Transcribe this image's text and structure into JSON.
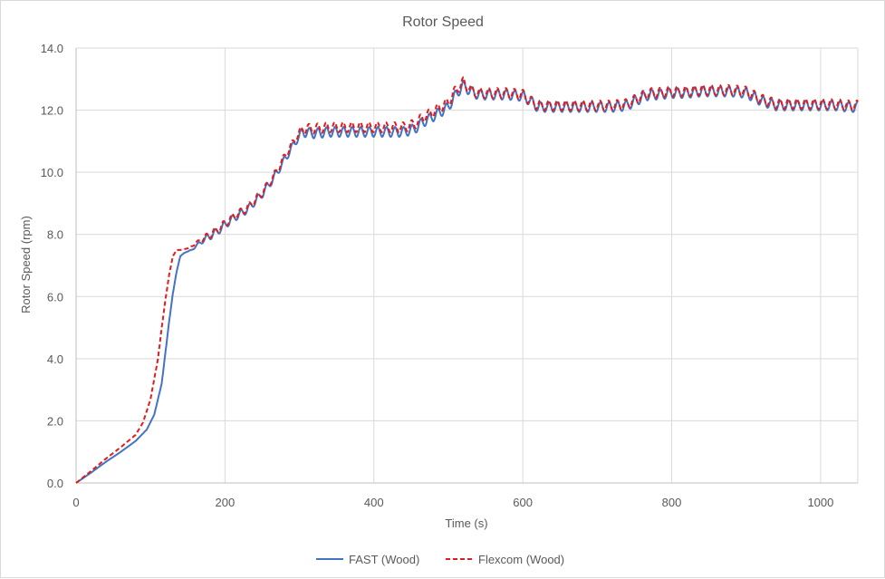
{
  "chart_data": {
    "type": "line",
    "title": "Rotor Speed",
    "xlabel": "Time (s)",
    "ylabel": "Rotor Speed (rpm)",
    "xlim": [
      0,
      1050
    ],
    "ylim": [
      0,
      14
    ],
    "xticks": [
      0,
      200,
      400,
      600,
      800,
      1000
    ],
    "xtick_labels": [
      "0",
      "200",
      "400",
      "600",
      "800",
      "1000"
    ],
    "yticks": [
      0,
      2,
      4,
      6,
      8,
      10,
      12,
      14
    ],
    "ytick_labels": [
      "0.0",
      "2.0",
      "4.0",
      "6.0",
      "8.0",
      "10.0",
      "12.0",
      "14.0"
    ],
    "grid": true,
    "legend_position": "bottom",
    "series": [
      {
        "name": "FAST (Wood)",
        "color": "#4472c4",
        "dash": "solid",
        "x": [
          0,
          20,
          40,
          60,
          80,
          95,
          105,
          115,
          120,
          125,
          130,
          135,
          140,
          145,
          155,
          170,
          190,
          210,
          230,
          250,
          265,
          280,
          295,
          305,
          320,
          340,
          360,
          380,
          400,
          420,
          440,
          455,
          465,
          480,
          500,
          510,
          520,
          530,
          540,
          560,
          580,
          600,
          610,
          620,
          640,
          660,
          680,
          700,
          720,
          740,
          760,
          770,
          780,
          800,
          820,
          840,
          860,
          880,
          900,
          920,
          940,
          960,
          980,
          1000,
          1020,
          1040,
          1050
        ],
        "y": [
          0.0,
          0.33,
          0.68,
          1.0,
          1.35,
          1.72,
          2.2,
          3.2,
          4.2,
          5.2,
          6.1,
          6.8,
          7.3,
          7.4,
          7.5,
          7.8,
          8.1,
          8.5,
          8.8,
          9.3,
          9.8,
          10.4,
          11.0,
          11.3,
          11.25,
          11.3,
          11.3,
          11.3,
          11.3,
          11.3,
          11.3,
          11.4,
          11.6,
          11.8,
          12.1,
          12.5,
          12.8,
          12.6,
          12.5,
          12.5,
          12.5,
          12.45,
          12.3,
          12.1,
          12.1,
          12.1,
          12.1,
          12.1,
          12.1,
          12.15,
          12.4,
          12.5,
          12.5,
          12.55,
          12.55,
          12.6,
          12.6,
          12.6,
          12.55,
          12.3,
          12.15,
          12.15,
          12.15,
          12.15,
          12.15,
          12.1,
          12.1
        ]
      },
      {
        "name": "Flexcom (Wood)",
        "color": "#e41a1c",
        "dash": "dashed",
        "x": [
          0,
          20,
          40,
          60,
          80,
          90,
          100,
          110,
          115,
          120,
          125,
          130,
          135,
          140,
          150,
          170,
          190,
          210,
          230,
          250,
          265,
          280,
          295,
          305,
          320,
          340,
          360,
          380,
          400,
          420,
          440,
          455,
          465,
          480,
          500,
          510,
          520,
          530,
          540,
          560,
          580,
          600,
          610,
          620,
          640,
          660,
          680,
          700,
          720,
          740,
          760,
          770,
          780,
          800,
          820,
          840,
          860,
          880,
          900,
          920,
          940,
          960,
          980,
          1000,
          1020,
          1040,
          1050
        ],
        "y": [
          0.0,
          0.38,
          0.78,
          1.15,
          1.55,
          1.95,
          2.7,
          4.0,
          5.0,
          5.9,
          6.7,
          7.3,
          7.5,
          7.5,
          7.55,
          7.85,
          8.15,
          8.55,
          8.85,
          9.35,
          9.85,
          10.5,
          11.1,
          11.4,
          11.4,
          11.45,
          11.45,
          11.45,
          11.45,
          11.45,
          11.45,
          11.55,
          11.75,
          11.95,
          12.25,
          12.65,
          12.9,
          12.65,
          12.55,
          12.55,
          12.55,
          12.5,
          12.3,
          12.15,
          12.15,
          12.15,
          12.15,
          12.15,
          12.15,
          12.2,
          12.45,
          12.55,
          12.55,
          12.6,
          12.6,
          12.65,
          12.65,
          12.65,
          12.6,
          12.35,
          12.2,
          12.2,
          12.2,
          12.2,
          12.2,
          12.15,
          12.15
        ]
      }
    ]
  }
}
